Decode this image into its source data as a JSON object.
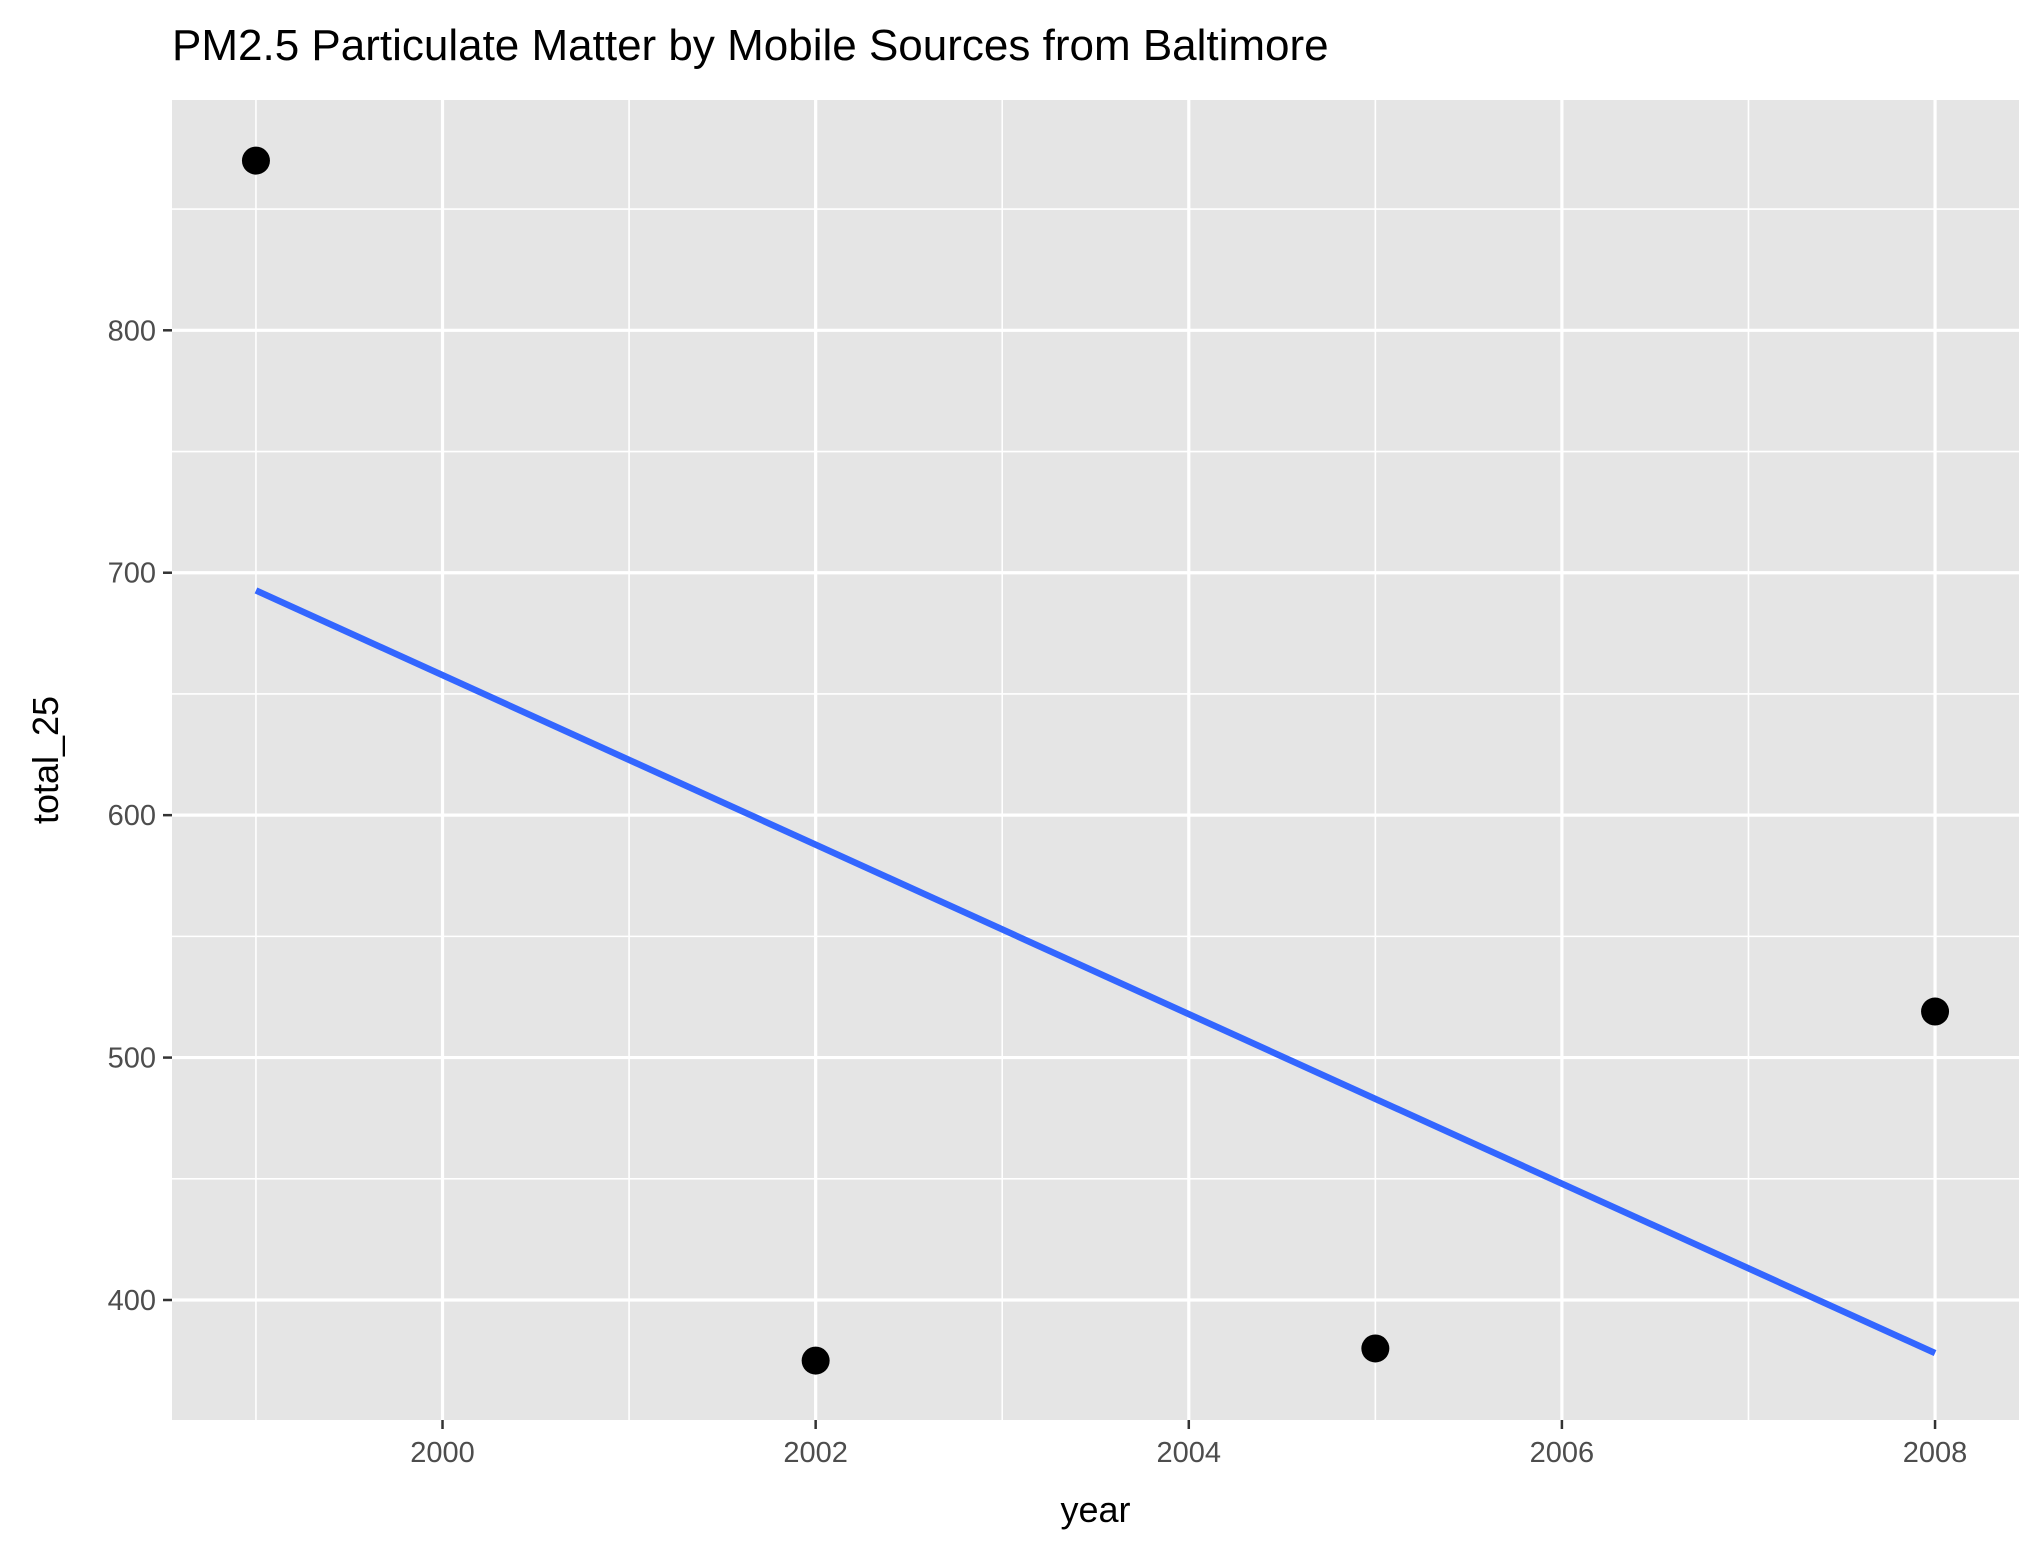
{
  "chart_data": {
    "type": "scatter",
    "title": "PM2.5 Particulate Matter by Mobile Sources from Baltimore",
    "xlabel": "year",
    "ylabel": "total_25",
    "xlim": [
      1998.55,
      2008.45
    ],
    "ylim": [
      350.5,
      895
    ],
    "x_ticks": [
      2000,
      2002,
      2004,
      2006,
      2008
    ],
    "x_tick_labels": [
      "2000",
      "2002",
      "2004",
      "2006",
      "2008"
    ],
    "y_ticks": [
      400,
      500,
      600,
      700,
      800
    ],
    "y_tick_labels": [
      "400",
      "500",
      "600",
      "700",
      "800"
    ],
    "grid": true,
    "legend": "none",
    "points": {
      "x": [
        1999,
        2002,
        2005,
        2008
      ],
      "y": [
        870,
        375,
        380,
        519
      ],
      "color": "#000000"
    },
    "trend_line": {
      "x": [
        1999,
        2008
      ],
      "y": [
        692.7,
        378.1
      ],
      "color": "#3366ff"
    },
    "colors": {
      "panel_background": "#e5e5e5",
      "grid": "#ffffff",
      "tick_text": "#4d4d4d"
    }
  }
}
